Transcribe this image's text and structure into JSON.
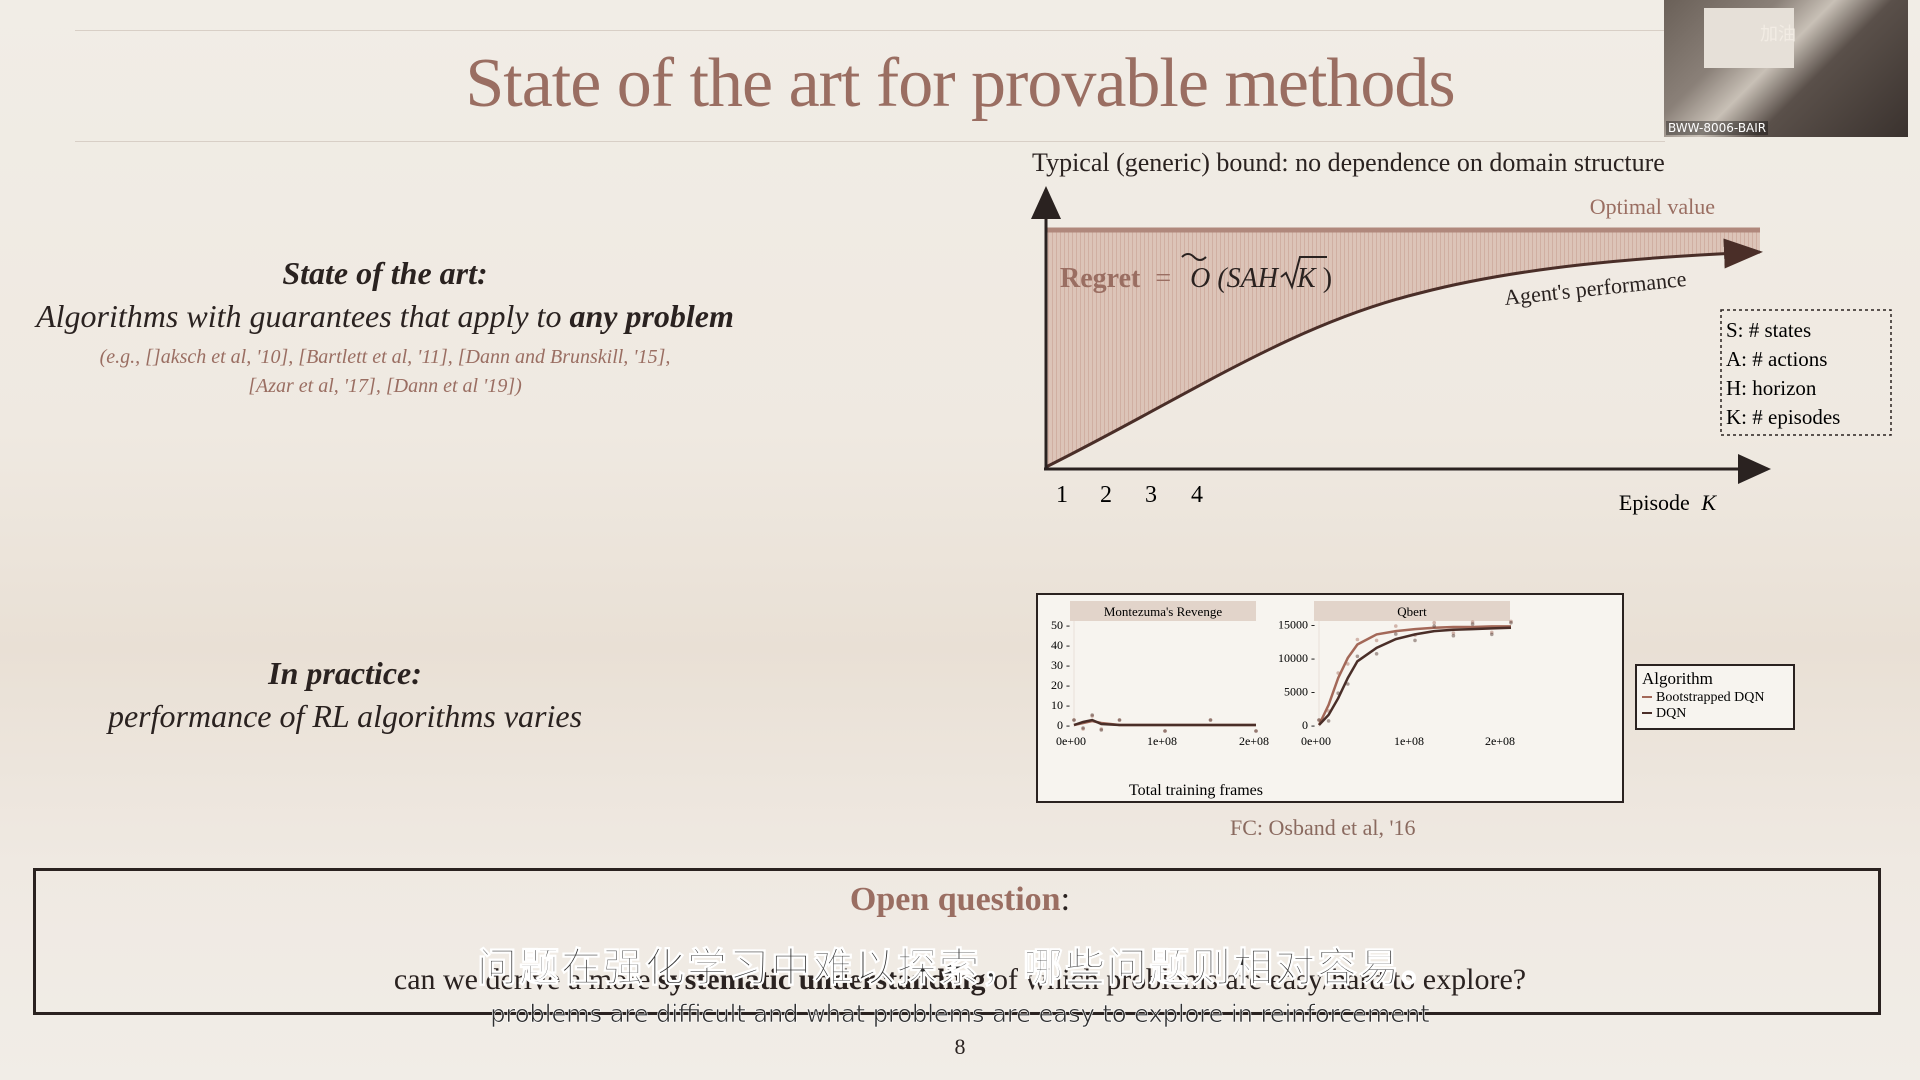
{
  "slide": {
    "title": "State of the art for provable methods",
    "number": "8"
  },
  "webcam": {
    "label": "BWW-8006-BAIR",
    "glyph": "加油"
  },
  "left": {
    "soa_heading": "State of the art:",
    "soa_line_pre": "Algorithms with guarantees that apply to ",
    "soa_line_bold": "any problem",
    "soa_cite1": "(e.g., []aksch et al, '10], [Bartlett et al, '11], [Dann and Brunskill, '15],",
    "soa_cite2": "[Azar et al, '17], [Dann et al '19])",
    "practice_heading": "In practice:",
    "practice_line": "performance of RL algorithms varies"
  },
  "bound_figure": {
    "caption": "Typical (generic) bound: no dependence on domain structure",
    "optimal_label": "Optimal value",
    "regret_label": "Regret",
    "regret_eq": "=",
    "regret_formula_O": "O",
    "regret_formula_args_open": "(SAH",
    "regret_formula_K": "K",
    "regret_formula_close": ")",
    "agent_label": "Agent's performance",
    "x_ticks": [
      "1",
      "2",
      "3",
      "4"
    ],
    "x_axis_label": "Episode",
    "x_axis_var": "K",
    "legend": [
      "S:  # states",
      "A: # actions",
      "H: horizon",
      "K: # episodes"
    ]
  },
  "chart_data": {
    "type": "line",
    "xlabel": "Total training frames",
    "x_ticks": [
      "0e+00",
      "1e+08",
      "2e+08"
    ],
    "legend_title": "Algorithm",
    "panels": [
      {
        "title": "Montezuma's Revenge",
        "y_ticks": [
          "50",
          "40",
          "30",
          "20",
          "10",
          "0"
        ],
        "ylim": [
          0,
          52
        ],
        "series": [
          {
            "name": "Bootstrapped DQN",
            "x": [
              0,
              0.1,
              0.2,
              0.3,
              0.5,
              1.0,
              1.5,
              2.0
            ],
            "y": [
              0,
              1,
              2,
              1,
              0,
              0,
              0,
              0
            ]
          },
          {
            "name": "DQN",
            "x": [
              0,
              0.1,
              0.2,
              0.3,
              0.5,
              1.0,
              1.5,
              2.0
            ],
            "y": [
              0,
              1.5,
              2.5,
              0.5,
              0,
              0,
              0,
              0
            ]
          }
        ]
      },
      {
        "title": "Qbert",
        "y_ticks": [
          "15000",
          "10000",
          "5000",
          "0"
        ],
        "ylim": [
          0,
          15500
        ],
        "series": [
          {
            "name": "Bootstrapped DQN",
            "x": [
              0,
              0.1,
              0.2,
              0.3,
              0.4,
              0.6,
              0.8,
              1.0,
              1.2,
              1.4,
              1.6,
              1.8,
              2.0
            ],
            "y": [
              0,
              3000,
              7000,
              10000,
              12000,
              13500,
              14000,
              14300,
              14500,
              14600,
              14600,
              14700,
              14700
            ]
          },
          {
            "name": "DQN",
            "x": [
              0,
              0.1,
              0.2,
              0.3,
              0.4,
              0.6,
              0.8,
              1.0,
              1.2,
              1.4,
              1.6,
              1.8,
              2.0
            ],
            "y": [
              0,
              1500,
              4000,
              7000,
              9500,
              11500,
              12800,
              13500,
              14000,
              14200,
              14300,
              14400,
              14500
            ]
          }
        ]
      }
    ]
  },
  "fc_cite": "FC: Osband et al, '16",
  "open_question": {
    "title": "Open question",
    "colon": ":",
    "text_pre": "can we derive a more ",
    "text_bold": "systematic understanding",
    "text_post": " of which problems are easy/hard to explore?"
  },
  "subtitles": {
    "zh": "问题在强化学习中难以探索，哪些问题则相对容易。",
    "en": "problems are difficult and what problems are easy to explore in reinforcement"
  },
  "colors": {
    "accent": "#9a6e62",
    "optimal_line": "#b0887c",
    "series_boot": "#a36858",
    "series_dqn": "#4a2e28"
  }
}
